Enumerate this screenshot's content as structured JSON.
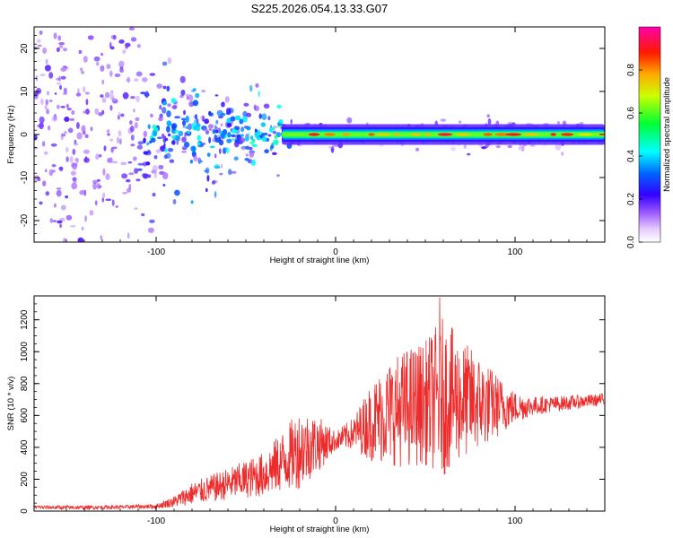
{
  "figure_title": "S225.2026.054.13.33.G07",
  "chart_data": [
    {
      "type": "heatmap",
      "title": "S225.2026.054.13.33.G07",
      "xlabel": "Height of straight line (km)",
      "ylabel": "Frequency (Hz)",
      "xlim": [
        -168,
        150
      ],
      "ylim": [
        -25,
        25
      ],
      "xticks": [
        -100,
        0,
        100
      ],
      "yticks": [
        -20,
        -10,
        0,
        10,
        20
      ],
      "description": "Spectrogram: scattered noise at low heights, concentrating into a narrow band near 0 Hz above about -30 km with peak amplitude near 0.9 around 0 to 150 km",
      "colorbar": {
        "label": "Normalized spectral amplitude",
        "range": [
          0.0,
          1.0
        ],
        "ticks": [
          0.0,
          0.2,
          0.4,
          0.6,
          0.8
        ],
        "tick_labels": [
          "0.0",
          "0.2",
          "0.4",
          "0.6",
          "0.8"
        ],
        "colors": [
          "#ffffff",
          "#cc88ff",
          "#6600ff",
          "#0000ff",
          "#00ffff",
          "#00ff00",
          "#ffff00",
          "#ff8800",
          "#ff0000",
          "#ff00aa"
        ]
      },
      "band": {
        "start_km": -30,
        "end_km": 150,
        "center_hz": 0,
        "half_width_hz": 1.2
      }
    },
    {
      "type": "line",
      "xlabel": "Height of straight line (km)",
      "ylabel": "SNR (10 * v/v)",
      "xlim": [
        -168,
        150
      ],
      "ylim": [
        0,
        1350
      ],
      "xticks": [
        -100,
        0,
        100
      ],
      "yticks": [
        0,
        200,
        400,
        600,
        800,
        1000,
        1200
      ],
      "line_color": "#ee2a2a",
      "series": [
        {
          "name": "SNR",
          "envelope_x": [
            -168,
            -150,
            -120,
            -100,
            -90,
            -80,
            -60,
            -40,
            -30,
            -20,
            -10,
            0,
            10,
            20,
            30,
            40,
            50,
            55,
            60,
            70,
            80,
            90,
            100,
            110,
            120,
            130,
            140,
            150
          ],
          "envelope_mean": [
            25,
            22,
            25,
            30,
            60,
            110,
            170,
            230,
            310,
            390,
            420,
            440,
            490,
            560,
            620,
            650,
            680,
            700,
            720,
            700,
            680,
            660,
            650,
            660,
            670,
            680,
            690,
            700
          ],
          "envelope_spread": [
            12,
            12,
            12,
            15,
            35,
            70,
            100,
            140,
            190,
            250,
            180,
            60,
            100,
            250,
            330,
            380,
            390,
            450,
            500,
            380,
            300,
            200,
            100,
            60,
            50,
            45,
            40,
            40
          ],
          "peak": {
            "x": 58,
            "y": 1340
          }
        }
      ]
    }
  ]
}
